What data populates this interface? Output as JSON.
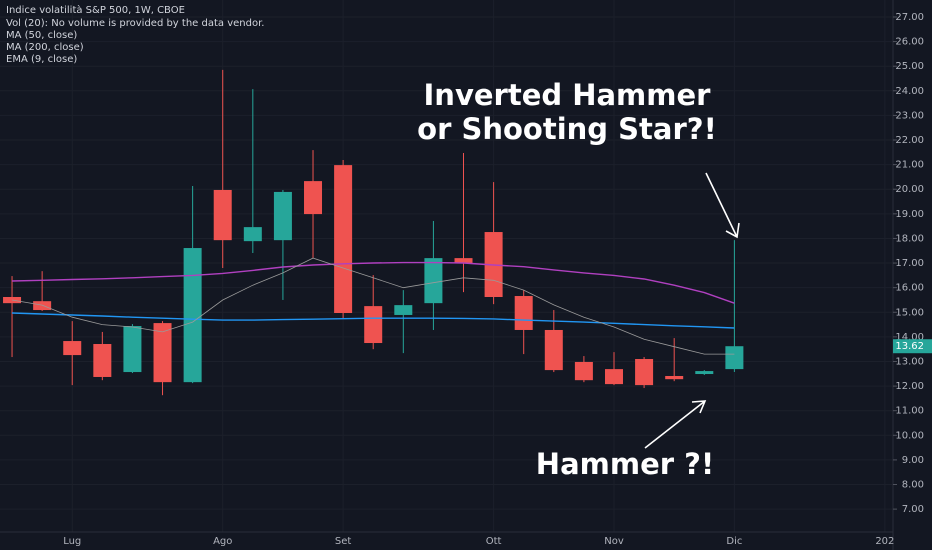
{
  "chart_data": {
    "type": "candlestick",
    "title": "Indice volatilità S&P 500, 1W, CBOE",
    "legend_lines": [
      "Vol (20): No volume is provided by the data vendor.",
      "MA (50, close)",
      "MA (200, close)",
      "EMA (9, close)"
    ],
    "annotations": [
      "Inverted Hammer",
      "or Shooting Star?!",
      "Hammer ?!"
    ],
    "up_color": "#26a69a",
    "down_color": "#ef5350",
    "candles": [
      {
        "open": 15.62,
        "high": 16.47,
        "low": 13.18,
        "close": 15.37
      },
      {
        "open": 15.45,
        "high": 16.67,
        "low": 15.05,
        "close": 15.09
      },
      {
        "open": 13.83,
        "high": 14.64,
        "low": 12.04,
        "close": 13.26
      },
      {
        "open": 13.71,
        "high": 14.2,
        "low": 12.24,
        "close": 12.37
      },
      {
        "open": 12.57,
        "high": 14.52,
        "low": 12.53,
        "close": 14.44
      },
      {
        "open": 14.56,
        "high": 14.64,
        "low": 11.63,
        "close": 12.16
      },
      {
        "open": 12.16,
        "high": 20.13,
        "low": 12.12,
        "close": 17.61
      },
      {
        "open": 19.97,
        "high": 24.85,
        "low": 16.8,
        "close": 17.93
      },
      {
        "open": 17.89,
        "high": 24.07,
        "low": 17.41,
        "close": 18.46
      },
      {
        "open": 17.93,
        "high": 19.97,
        "low": 15.5,
        "close": 19.89
      },
      {
        "open": 20.33,
        "high": 21.59,
        "low": 17.2,
        "close": 18.99
      },
      {
        "open": 20.98,
        "high": 21.19,
        "low": 14.76,
        "close": 14.97
      },
      {
        "open": 15.25,
        "high": 16.51,
        "low": 13.5,
        "close": 13.75
      },
      {
        "open": 14.89,
        "high": 15.9,
        "low": 13.34,
        "close": 15.29
      },
      {
        "open": 15.37,
        "high": 18.71,
        "low": 14.28,
        "close": 17.2
      },
      {
        "open": 17.2,
        "high": 21.47,
        "low": 15.82,
        "close": 17.0
      },
      {
        "open": 18.26,
        "high": 20.29,
        "low": 15.33,
        "close": 15.62
      },
      {
        "open": 15.66,
        "high": 15.9,
        "low": 13.3,
        "close": 14.28
      },
      {
        "open": 14.28,
        "high": 15.09,
        "low": 12.57,
        "close": 12.65
      },
      {
        "open": 12.98,
        "high": 13.22,
        "low": 12.16,
        "close": 12.24
      },
      {
        "open": 12.69,
        "high": 13.38,
        "low": 12.04,
        "close": 12.08
      },
      {
        "open": 13.1,
        "high": 13.18,
        "low": 11.92,
        "close": 12.04
      },
      {
        "open": 12.41,
        "high": 13.95,
        "low": 12.2,
        "close": 12.28
      },
      {
        "open": 12.49,
        "high": 12.65,
        "low": 12.45,
        "close": 12.61
      },
      {
        "open": 12.69,
        "high": 17.93,
        "low": 12.57,
        "close": 13.62
      }
    ],
    "series": [
      {
        "name": "MA (50, close)",
        "color": "#b040c0",
        "values": [
          16.27,
          16.3,
          16.33,
          16.36,
          16.4,
          16.45,
          16.5,
          16.58,
          16.7,
          16.84,
          16.92,
          16.97,
          17.0,
          17.02,
          17.02,
          17.0,
          16.92,
          16.85,
          16.72,
          16.6,
          16.5,
          16.35,
          16.1,
          15.8,
          15.37
        ]
      },
      {
        "name": "MA (200, close)",
        "color": "#2196f3",
        "values": [
          14.97,
          14.93,
          14.89,
          14.85,
          14.8,
          14.76,
          14.72,
          14.68,
          14.68,
          14.7,
          14.72,
          14.74,
          14.76,
          14.76,
          14.76,
          14.75,
          14.73,
          14.68,
          14.64,
          14.6,
          14.55,
          14.5,
          14.45,
          14.41,
          14.36
        ]
      },
      {
        "name": "EMA (9, close)",
        "color": "#9a9a9a",
        "values": [
          15.5,
          15.29,
          14.8,
          14.5,
          14.4,
          14.2,
          14.6,
          15.5,
          16.1,
          16.6,
          17.2,
          16.8,
          16.4,
          16.0,
          16.2,
          16.4,
          16.3,
          15.9,
          15.3,
          14.8,
          14.4,
          13.9,
          13.6,
          13.3,
          13.3
        ]
      }
    ],
    "xlim": [
      -0.4,
      29.27
    ],
    "xticks": [
      {
        "value": 2,
        "label": "Lug"
      },
      {
        "value": 7,
        "label": "Ago"
      },
      {
        "value": 11,
        "label": "Set"
      },
      {
        "value": 16,
        "label": "Ott"
      },
      {
        "value": 20,
        "label": "Nov"
      },
      {
        "value": 24,
        "label": "Dic"
      },
      {
        "value": 29,
        "label": "202"
      }
    ],
    "ylim": [
      6.07,
      27.69
    ],
    "yticks": [
      {
        "value": 7,
        "label": "7.00"
      },
      {
        "value": 8,
        "label": "8.00"
      },
      {
        "value": 9,
        "label": "9.00"
      },
      {
        "value": 10,
        "label": "10.00"
      },
      {
        "value": 11,
        "label": "11.00"
      },
      {
        "value": 12,
        "label": "12.00"
      },
      {
        "value": 13,
        "label": "13.00"
      },
      {
        "value": 14,
        "label": "14.00"
      },
      {
        "value": 15,
        "label": "15.00"
      },
      {
        "value": 16,
        "label": "16.00"
      },
      {
        "value": 17,
        "label": "17.00"
      },
      {
        "value": 18,
        "label": "18.00"
      },
      {
        "value": 19,
        "label": "19.00"
      },
      {
        "value": 20,
        "label": "20.00"
      },
      {
        "value": 21,
        "label": "21.00"
      },
      {
        "value": 22,
        "label": "22.00"
      },
      {
        "value": 23,
        "label": "23.00"
      },
      {
        "value": 24,
        "label": "24.00"
      },
      {
        "value": 25,
        "label": "25.00"
      },
      {
        "value": 26,
        "label": "26.00"
      },
      {
        "value": 27,
        "label": "27.00"
      }
    ],
    "grid": true
  }
}
